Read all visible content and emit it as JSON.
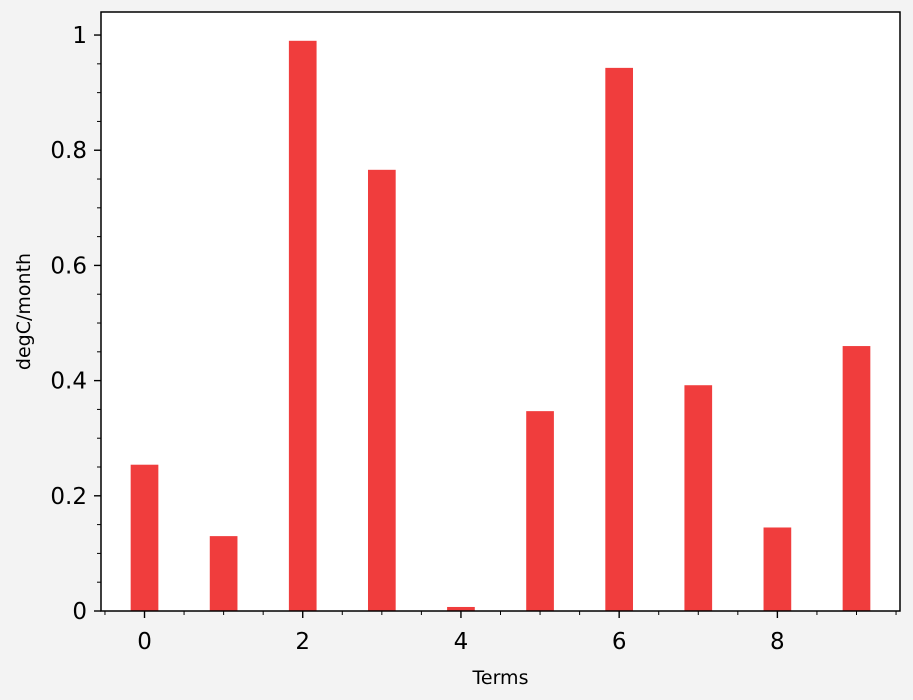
{
  "chart_data": {
    "type": "bar",
    "categories": [
      0,
      1,
      2,
      3,
      4,
      5,
      6,
      7,
      8,
      9
    ],
    "values": [
      0.254,
      0.13,
      0.99,
      0.766,
      0.007,
      0.347,
      0.943,
      0.392,
      0.145,
      0.46
    ],
    "bar_color": "#f03d3d",
    "xlabel": "Terms",
    "ylabel": "degC/month",
    "xlim": [
      -0.55,
      9.55
    ],
    "ylim": [
      0,
      1.04
    ],
    "xticks": [
      0,
      2,
      4,
      6,
      8
    ],
    "xtick_labels": [
      "0",
      "2",
      "4",
      "6",
      "8"
    ],
    "yticks": [
      0,
      0.2,
      0.4,
      0.6,
      0.8,
      1
    ],
    "ytick_labels": [
      "0",
      "0.2",
      "0.4",
      "0.6",
      "0.8",
      "1"
    ],
    "grid": false,
    "legend": "none"
  }
}
